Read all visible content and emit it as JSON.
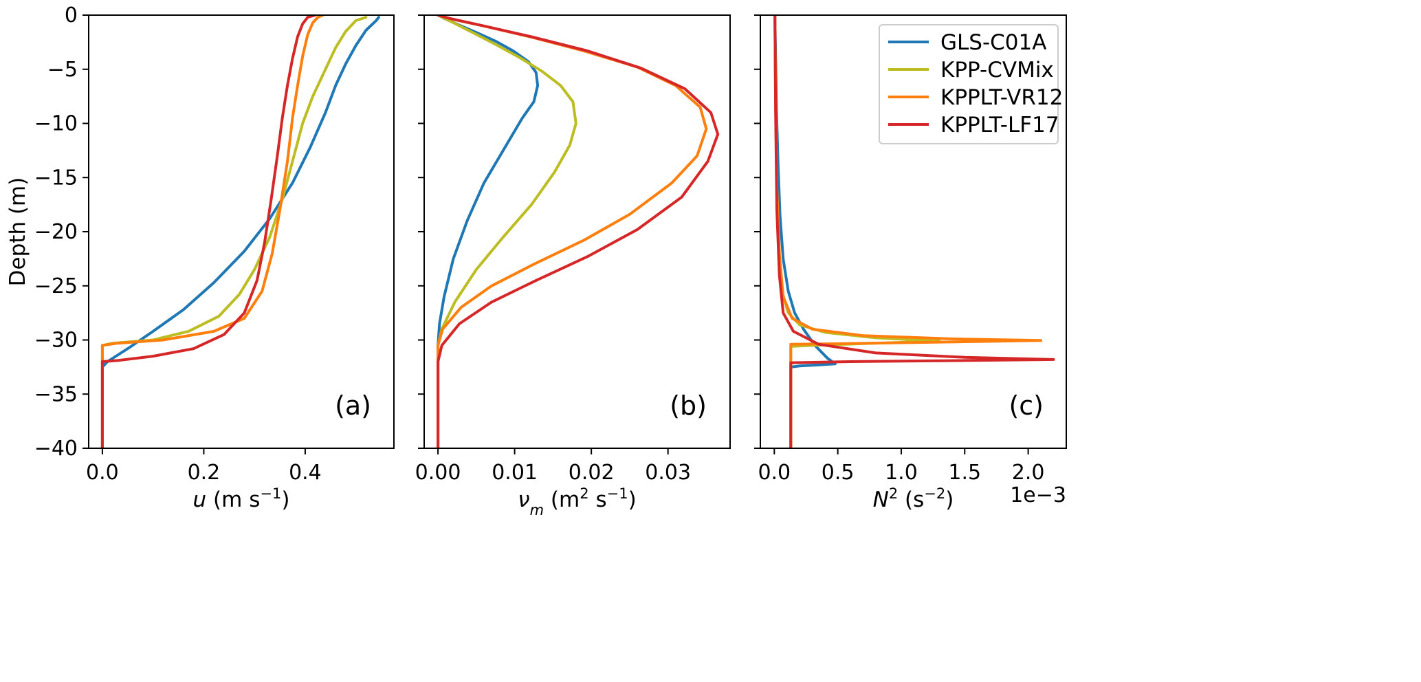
{
  "chart_data": [
    {
      "type": "line",
      "panel": "(a)",
      "xlabel": "u (m s⁻¹)",
      "ylabel": "Depth (m)",
      "xlim": [
        -0.027,
        0.575
      ],
      "ylim": [
        -40,
        0
      ],
      "xticks": [
        0.0,
        0.2,
        0.4
      ],
      "xtick_labels": [
        "0.0",
        "0.2",
        "0.4"
      ],
      "yticks": [
        0,
        -5,
        -10,
        -15,
        -20,
        -25,
        -30,
        -35,
        -40
      ],
      "ytick_labels": [
        "0",
        "−5",
        "−10",
        "−15",
        "−20",
        "−25",
        "−30",
        "−35",
        "−40"
      ],
      "series": [
        {
          "name": "GLS-C01A",
          "color": "#1f77b4",
          "x": [
            0,
            0,
            0.01,
            0.05,
            0.1,
            0.16,
            0.22,
            0.28,
            0.33,
            0.375,
            0.41,
            0.44,
            0.46,
            0.48,
            0.5,
            0.52,
            0.54,
            0.545
          ],
          "y": [
            -40,
            -32.5,
            -32.0,
            -30.8,
            -29.2,
            -27.2,
            -24.7,
            -21.8,
            -18.8,
            -15.5,
            -12.2,
            -9.0,
            -6.5,
            -4.5,
            -2.8,
            -1.4,
            -0.5,
            -0.2
          ]
        },
        {
          "name": "KPP-CVMix",
          "color": "#bcbd22",
          "x": [
            0,
            0,
            0.02,
            0.1,
            0.17,
            0.23,
            0.27,
            0.3,
            0.33,
            0.355,
            0.375,
            0.395,
            0.415,
            0.44,
            0.46,
            0.48,
            0.5,
            0.52
          ],
          "y": [
            -40,
            -30.5,
            -30.3,
            -30.0,
            -29.2,
            -27.8,
            -25.8,
            -23.5,
            -20.5,
            -17.0,
            -13.5,
            -10.0,
            -7.5,
            -5.0,
            -3.0,
            -1.5,
            -0.5,
            -0.2
          ]
        },
        {
          "name": "KPPLT-VR12",
          "color": "#ff7f0e",
          "x": [
            0,
            0,
            0.03,
            0.12,
            0.22,
            0.28,
            0.315,
            0.335,
            0.35,
            0.365,
            0.375,
            0.385,
            0.395,
            0.405,
            0.415,
            0.425,
            0.435
          ],
          "y": [
            -40,
            -30.5,
            -30.3,
            -30.0,
            -29.2,
            -28.0,
            -25.5,
            -22.0,
            -18.0,
            -13.5,
            -9.5,
            -6.5,
            -3.8,
            -1.8,
            -0.7,
            -0.2,
            0.0
          ]
        },
        {
          "name": "KPPLT-LF17",
          "color": "#d62728",
          "x": [
            0,
            0,
            0.03,
            0.1,
            0.18,
            0.24,
            0.28,
            0.305,
            0.32,
            0.333,
            0.345,
            0.355,
            0.365,
            0.375,
            0.385,
            0.395,
            0.405,
            0.42
          ],
          "y": [
            -40,
            -32.0,
            -31.9,
            -31.5,
            -30.8,
            -29.5,
            -27.5,
            -24.5,
            -21.0,
            -17.0,
            -13.0,
            -9.5,
            -6.5,
            -4.0,
            -2.0,
            -0.8,
            -0.2,
            0.0
          ]
        }
      ]
    },
    {
      "type": "line",
      "panel": "(b)",
      "xlabel": "ν_m (m² s⁻¹)",
      "ylabel": "",
      "xlim": [
        -0.0018,
        0.0381
      ],
      "ylim": [
        -40,
        0
      ],
      "xticks": [
        0.0,
        0.01,
        0.02,
        0.03
      ],
      "xtick_labels": [
        "0.00",
        "0.01",
        "0.02",
        "0.03"
      ],
      "series": [
        {
          "name": "GLS-C01A",
          "color": "#1f77b4",
          "x": [
            0,
            0,
            0.0002,
            0.0008,
            0.002,
            0.0038,
            0.006,
            0.0085,
            0.011,
            0.0125,
            0.013,
            0.0128,
            0.0118,
            0.0098,
            0.0075,
            0.005,
            0.0027,
            0.0008,
            0
          ],
          "y": [
            -40,
            -30.5,
            -28.5,
            -26.0,
            -22.5,
            -19.0,
            -15.5,
            -12.5,
            -9.5,
            -8.0,
            -6.5,
            -5.3,
            -4.3,
            -3.3,
            -2.4,
            -1.6,
            -0.9,
            -0.3,
            0
          ]
        },
        {
          "name": "KPP-CVMix",
          "color": "#bcbd22",
          "x": [
            0,
            0,
            0.0005,
            0.0022,
            0.005,
            0.0085,
            0.0122,
            0.0152,
            0.0172,
            0.018,
            0.0176,
            0.016,
            0.0136,
            0.0106,
            0.0075,
            0.0045,
            0.002,
            0
          ],
          "y": [
            -40,
            -30.5,
            -29.0,
            -26.5,
            -23.5,
            -20.5,
            -17.5,
            -14.5,
            -12.0,
            -10.0,
            -8.0,
            -6.5,
            -5.2,
            -3.9,
            -2.7,
            -1.6,
            -0.7,
            0
          ]
        },
        {
          "name": "KPPLT-VR12",
          "color": "#ff7f0e",
          "x": [
            0,
            0,
            0.0006,
            0.003,
            0.007,
            0.0125,
            0.019,
            0.025,
            0.0305,
            0.0338,
            0.035,
            0.0342,
            0.031,
            0.026,
            0.019,
            0.012,
            0.006,
            0.002,
            0
          ],
          "y": [
            -40,
            -30.5,
            -29.0,
            -27.0,
            -25.0,
            -23.0,
            -20.8,
            -18.4,
            -15.5,
            -13.0,
            -10.5,
            -8.5,
            -6.5,
            -4.8,
            -3.3,
            -2.0,
            -1.0,
            -0.4,
            0
          ]
        },
        {
          "name": "KPPLT-LF17",
          "color": "#d62728",
          "x": [
            0,
            0,
            0.0005,
            0.0028,
            0.007,
            0.0128,
            0.0195,
            0.026,
            0.0318,
            0.0352,
            0.0365,
            0.0356,
            0.0322,
            0.0265,
            0.0195,
            0.0122,
            0.006,
            0.0015,
            0
          ],
          "y": [
            -40,
            -32.0,
            -30.5,
            -28.5,
            -26.5,
            -24.5,
            -22.3,
            -19.8,
            -16.8,
            -13.5,
            -11.0,
            -9.0,
            -6.8,
            -4.9,
            -3.3,
            -2.0,
            -1.0,
            -0.3,
            0
          ]
        }
      ]
    },
    {
      "type": "line",
      "panel": "(c)",
      "xlabel": "N² (s⁻²)",
      "ylabel": "",
      "xlim": [
        -0.00011,
        0.0023
      ],
      "ylim": [
        -40,
        0
      ],
      "xticks": [
        0.0,
        0.0005,
        0.001,
        0.0015,
        0.002
      ],
      "xtick_labels": [
        "0.0",
        "0.5",
        "1.0",
        "1.5",
        "2.0"
      ],
      "offset_text": "1e−3",
      "series": [
        {
          "name": "GLS-C01A",
          "color": "#1f77b4",
          "x": [
            0.00013,
            0.00013,
            0.0002,
            0.00035,
            0.00048,
            0.00042,
            0.00032,
            0.00023,
            0.00016,
            0.00011,
            7e-05,
            4.5e-05,
            3e-05,
            1.8e-05,
            1e-05,
            5e-06
          ],
          "y": [
            -40,
            -32.5,
            -32.4,
            -32.3,
            -32.2,
            -31.7,
            -30.5,
            -29.0,
            -27.5,
            -25.5,
            -22.5,
            -18.5,
            -14.0,
            -9.0,
            -4.0,
            0
          ]
        },
        {
          "name": "KPP-CVMix",
          "color": "#bcbd22",
          "x": [
            0.00013,
            0.00013,
            0.0003,
            0.0008,
            0.0013,
            0.0008,
            0.0004,
            0.0002,
            0.00011,
            6e-05,
            3.5e-05,
            2e-05,
            1e-05,
            5e-06
          ],
          "y": [
            -40,
            -30.6,
            -30.5,
            -30.3,
            -30.1,
            -29.8,
            -29.3,
            -28.6,
            -27.5,
            -25.5,
            -22.0,
            -16.0,
            -8.0,
            0
          ]
        },
        {
          "name": "KPPLT-VR12",
          "color": "#ff7f0e",
          "x": [
            0.00013,
            0.00013,
            0.0005,
            0.0013,
            0.0021,
            0.0014,
            0.0007,
            0.0003,
            0.00014,
            7e-05,
            4e-05,
            2e-05,
            1e-05,
            5e-06
          ],
          "y": [
            -40,
            -30.4,
            -30.35,
            -30.2,
            -30.05,
            -29.9,
            -29.6,
            -29.0,
            -28.0,
            -26.0,
            -22.0,
            -16.0,
            -8.0,
            0
          ]
        },
        {
          "name": "KPPLT-LF17",
          "color": "#d62728",
          "x": [
            0.00013,
            0.00013,
            0.0006,
            0.0015,
            0.0022,
            0.0015,
            0.0008,
            0.00035,
            0.00015,
            7e-05,
            4e-05,
            2e-05,
            1e-05,
            5e-06
          ],
          "y": [
            -40,
            -32.1,
            -32.0,
            -31.9,
            -31.8,
            -31.6,
            -31.2,
            -30.4,
            -29.2,
            -27.5,
            -24.0,
            -18.0,
            -9.0,
            0
          ]
        }
      ]
    }
  ],
  "legend": {
    "placement": "top-right of panel (c)",
    "entries": [
      {
        "label": "GLS-C01A",
        "color": "#1f77b4"
      },
      {
        "label": "KPP-CVMix",
        "color": "#bcbd22"
      },
      {
        "label": "KPPLT-VR12",
        "color": "#ff7f0e"
      },
      {
        "label": "KPPLT-LF17",
        "color": "#d62728"
      }
    ]
  }
}
